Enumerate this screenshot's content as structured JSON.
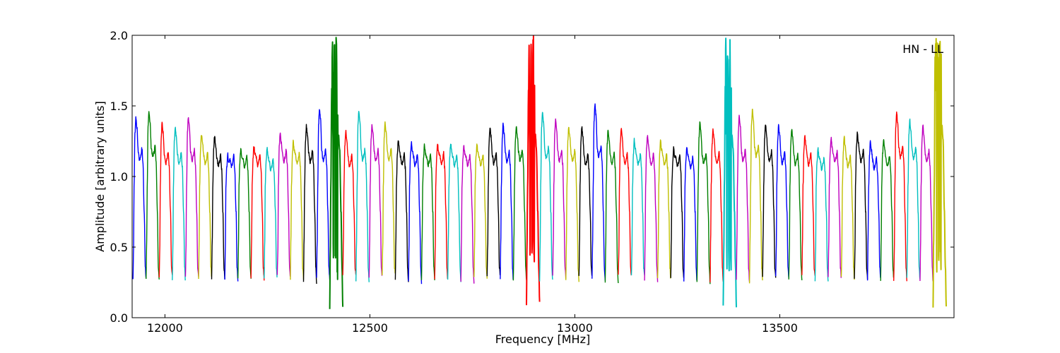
{
  "chart_data": {
    "type": "line",
    "title": "",
    "xlabel": "Frequency [MHz]",
    "ylabel": "Amplitude [arbitrary units]",
    "xlim": [
      11920,
      13925
    ],
    "ylim": [
      0.0,
      2.0
    ],
    "xticks": [
      12000,
      12500,
      13000,
      13500
    ],
    "xtick_labels": [
      "12000",
      "12500",
      "13000",
      "13500"
    ],
    "yticks": [
      0.0,
      0.5,
      1.0,
      1.5,
      2.0
    ],
    "ytick_labels": [
      "0.0",
      "0.5",
      "1.0",
      "1.5",
      "2.0"
    ],
    "grid": false,
    "annotation": "HN - LL",
    "band_width_mhz": 32,
    "color_cycle": [
      "#0000ff",
      "#008000",
      "#ff0000",
      "#00bfbf",
      "#bf00bf",
      "#bfbf00",
      "#000000"
    ],
    "bands": [
      {
        "start": 11922,
        "peak": 1.42
      },
      {
        "start": 11954,
        "peak": 1.46
      },
      {
        "start": 11986,
        "peak": 1.38
      },
      {
        "start": 12018,
        "peak": 1.35
      },
      {
        "start": 12050,
        "peak": 1.42
      },
      {
        "start": 12082,
        "peak": 1.3
      },
      {
        "start": 12114,
        "peak": 1.29
      },
      {
        "start": 12146,
        "peak": 1.16
      },
      {
        "start": 12178,
        "peak": 1.2
      },
      {
        "start": 12210,
        "peak": 1.22
      },
      {
        "start": 12242,
        "peak": 1.2
      },
      {
        "start": 12274,
        "peak": 1.31
      },
      {
        "start": 12306,
        "peak": 1.25
      },
      {
        "start": 12338,
        "peak": 1.36
      },
      {
        "start": 12370,
        "peak": 1.48
      },
      {
        "start": 12402,
        "peak": 1.77,
        "spike": 2.0,
        "dip": 0.07
      },
      {
        "start": 12434,
        "peak": 1.32
      },
      {
        "start": 12466,
        "peak": 1.47
      },
      {
        "start": 12498,
        "peak": 1.37
      },
      {
        "start": 12530,
        "peak": 1.38
      },
      {
        "start": 12562,
        "peak": 1.26
      },
      {
        "start": 12594,
        "peak": 1.24
      },
      {
        "start": 12626,
        "peak": 1.22
      },
      {
        "start": 12658,
        "peak": 1.23
      },
      {
        "start": 12690,
        "peak": 1.24
      },
      {
        "start": 12722,
        "peak": 1.22
      },
      {
        "start": 12754,
        "peak": 1.23
      },
      {
        "start": 12786,
        "peak": 1.35
      },
      {
        "start": 12818,
        "peak": 1.37
      },
      {
        "start": 12850,
        "peak": 1.36
      },
      {
        "start": 12882,
        "peak": 1.75,
        "spike": 2.0,
        "dip": 0.1
      },
      {
        "start": 12914,
        "peak": 1.46
      },
      {
        "start": 12946,
        "peak": 1.4
      },
      {
        "start": 12978,
        "peak": 1.35
      },
      {
        "start": 13010,
        "peak": 1.35
      },
      {
        "start": 13042,
        "peak": 1.51
      },
      {
        "start": 13074,
        "peak": 1.33
      },
      {
        "start": 13106,
        "peak": 1.34
      },
      {
        "start": 13138,
        "peak": 1.26
      },
      {
        "start": 13170,
        "peak": 1.29
      },
      {
        "start": 13202,
        "peak": 1.25
      },
      {
        "start": 13234,
        "peak": 1.2
      },
      {
        "start": 13266,
        "peak": 1.21
      },
      {
        "start": 13298,
        "peak": 1.38
      },
      {
        "start": 13330,
        "peak": 1.33
      },
      {
        "start": 13362,
        "peak": 1.77,
        "spike": 2.0,
        "dip": 0.08
      },
      {
        "start": 13394,
        "peak": 1.43
      },
      {
        "start": 13426,
        "peak": 1.47
      },
      {
        "start": 13458,
        "peak": 1.37
      },
      {
        "start": 13490,
        "peak": 1.36
      },
      {
        "start": 13522,
        "peak": 1.34
      },
      {
        "start": 13554,
        "peak": 1.29
      },
      {
        "start": 13586,
        "peak": 1.2
      },
      {
        "start": 13618,
        "peak": 1.27
      },
      {
        "start": 13650,
        "peak": 1.28
      },
      {
        "start": 13682,
        "peak": 1.31
      },
      {
        "start": 13714,
        "peak": 1.25
      },
      {
        "start": 13746,
        "peak": 1.26
      },
      {
        "start": 13778,
        "peak": 1.45
      },
      {
        "start": 13810,
        "peak": 1.4
      },
      {
        "start": 13842,
        "peak": 1.36
      },
      {
        "start": 13874,
        "peak": 2.0,
        "spike": 2.0,
        "dip": 0.07
      }
    ]
  }
}
